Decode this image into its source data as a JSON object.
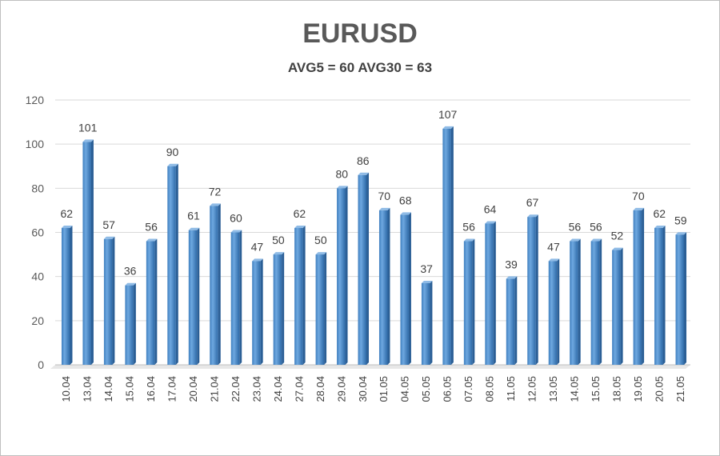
{
  "chart_data": {
    "type": "bar",
    "title": "EURUSD",
    "subtitle": "AVG5 = 60 AVG30 = 63",
    "xlabel": "",
    "ylabel": "",
    "ylim": [
      0,
      120
    ],
    "yticks": [
      0,
      20,
      40,
      60,
      80,
      100,
      120
    ],
    "grid": true,
    "legend": "none",
    "bar_color": "#5b9bd5",
    "categories": [
      "10.04",
      "13.04",
      "14.04",
      "15.04",
      "16.04",
      "17.04",
      "20.04",
      "21.04",
      "22.04",
      "23.04",
      "24.04",
      "27.04",
      "28.04",
      "29.04",
      "30.04",
      "01.05",
      "04.05",
      "05.05",
      "06.05",
      "07.05",
      "08.05",
      "11.05",
      "12.05",
      "13.05",
      "14.05",
      "15.05",
      "18.05",
      "19.05",
      "20.05",
      "21.05"
    ],
    "values": [
      62,
      101,
      57,
      36,
      56,
      90,
      61,
      72,
      60,
      47,
      50,
      62,
      50,
      80,
      86,
      70,
      68,
      37,
      107,
      56,
      64,
      39,
      67,
      47,
      56,
      56,
      52,
      70,
      62,
      59
    ]
  }
}
